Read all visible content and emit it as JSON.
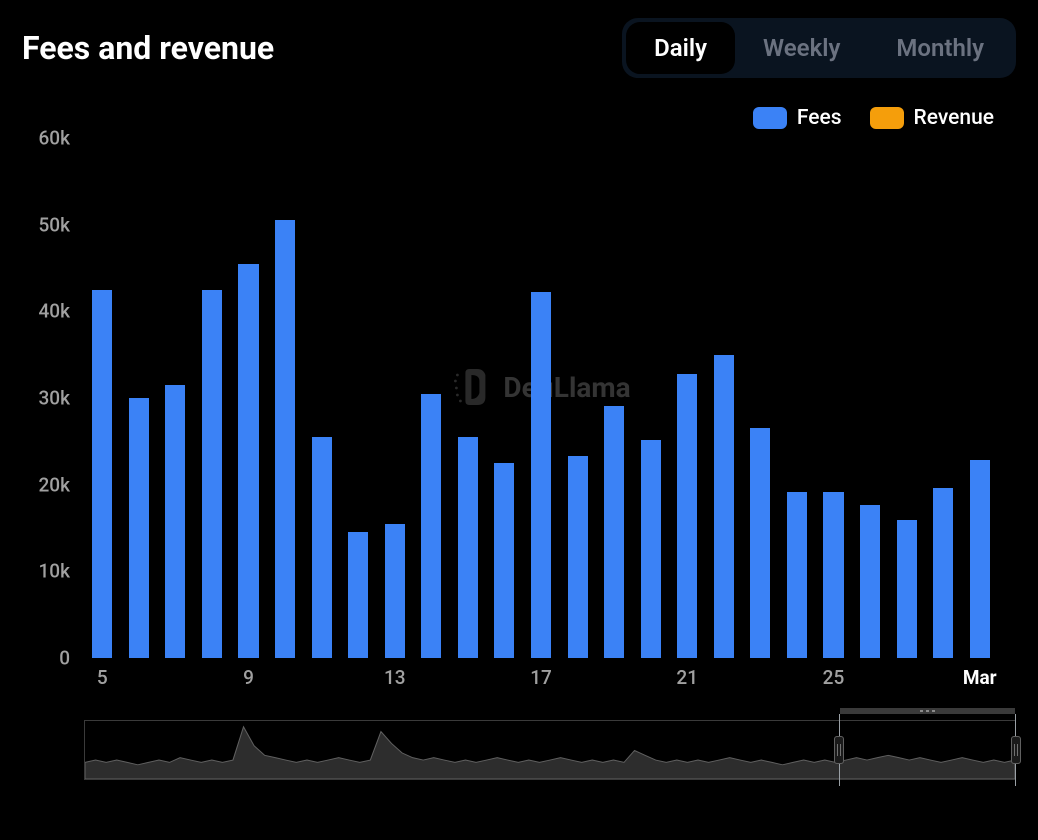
{
  "title": "Fees and revenue",
  "tabs": {
    "items": [
      {
        "label": "Daily",
        "active": true
      },
      {
        "label": "Weekly",
        "active": false
      },
      {
        "label": "Monthly",
        "active": false
      }
    ],
    "active_bg": "#000000",
    "container_bg": "#0a1420",
    "active_text_color": "#ffffff",
    "inactive_text_color": "#6b7280",
    "fontsize": 24
  },
  "legend": {
    "items": [
      {
        "label": "Fees",
        "color": "#3b82f6"
      },
      {
        "label": "Revenue",
        "color": "#f59e0b"
      }
    ],
    "fontsize": 21,
    "swatch_radius": 6
  },
  "chart": {
    "type": "bar",
    "background_color": "#000000",
    "y_axis": {
      "min": 0,
      "max": 60000,
      "ticks": [
        0,
        10000,
        20000,
        30000,
        40000,
        50000,
        60000
      ],
      "tick_labels": [
        "0",
        "10k",
        "20k",
        "30k",
        "40k",
        "50k",
        "60k"
      ],
      "label_color": "#a0a0a0",
      "fontsize": 19
    },
    "x_axis": {
      "ticks": [
        {
          "index": 0,
          "label": "5",
          "bold": false
        },
        {
          "index": 4,
          "label": "9",
          "bold": false
        },
        {
          "index": 8,
          "label": "13",
          "bold": false
        },
        {
          "index": 12,
          "label": "17",
          "bold": false
        },
        {
          "index": 16,
          "label": "21",
          "bold": false
        },
        {
          "index": 20,
          "label": "25",
          "bold": false
        },
        {
          "index": 24,
          "label": "Mar",
          "bold": true
        }
      ],
      "label_color": "#a0a0a0",
      "fontsize": 19
    },
    "series": {
      "fees": {
        "color": "#3b82f6",
        "bar_width_ratio": 0.55,
        "values": [
          42500,
          30000,
          31500,
          42500,
          45500,
          50500,
          25500,
          14500,
          15500,
          30500,
          25500,
          22500,
          42200,
          23300,
          29100,
          25100,
          32800,
          35000,
          26500,
          19100,
          19100,
          17700,
          15900,
          19600,
          22800
        ]
      },
      "revenue": {
        "color": "#f59e0b",
        "values": []
      }
    },
    "watermark": {
      "text": "DefiLlama",
      "color": "#4a4a4a",
      "fontsize": 28
    }
  },
  "brush": {
    "background_color": "#000000",
    "border_color": "#3a3a3a",
    "area_fill": "#2d2d2d",
    "area_stroke": "#606060",
    "selection_start_pct": 81,
    "selection_end_pct": 100,
    "handle_bg": "#1a1a1a",
    "handle_border": "#606060",
    "spark_values": [
      7,
      8,
      7,
      8,
      7,
      6,
      7,
      8,
      7,
      9,
      8,
      7,
      8,
      7,
      8,
      22,
      14,
      10,
      9,
      8,
      7,
      8,
      7,
      8,
      9,
      8,
      7,
      8,
      20,
      15,
      11,
      9,
      8,
      9,
      8,
      7,
      8,
      7,
      8,
      9,
      8,
      7,
      8,
      7,
      8,
      9,
      8,
      7,
      8,
      7,
      8,
      7,
      12,
      10,
      8,
      7,
      8,
      7,
      8,
      7,
      8,
      9,
      8,
      7,
      8,
      7,
      6,
      7,
      8,
      7,
      8,
      7,
      8,
      9,
      8,
      9,
      10,
      9,
      8,
      9,
      8,
      7,
      8,
      9,
      8,
      7,
      8,
      7,
      8
    ]
  }
}
